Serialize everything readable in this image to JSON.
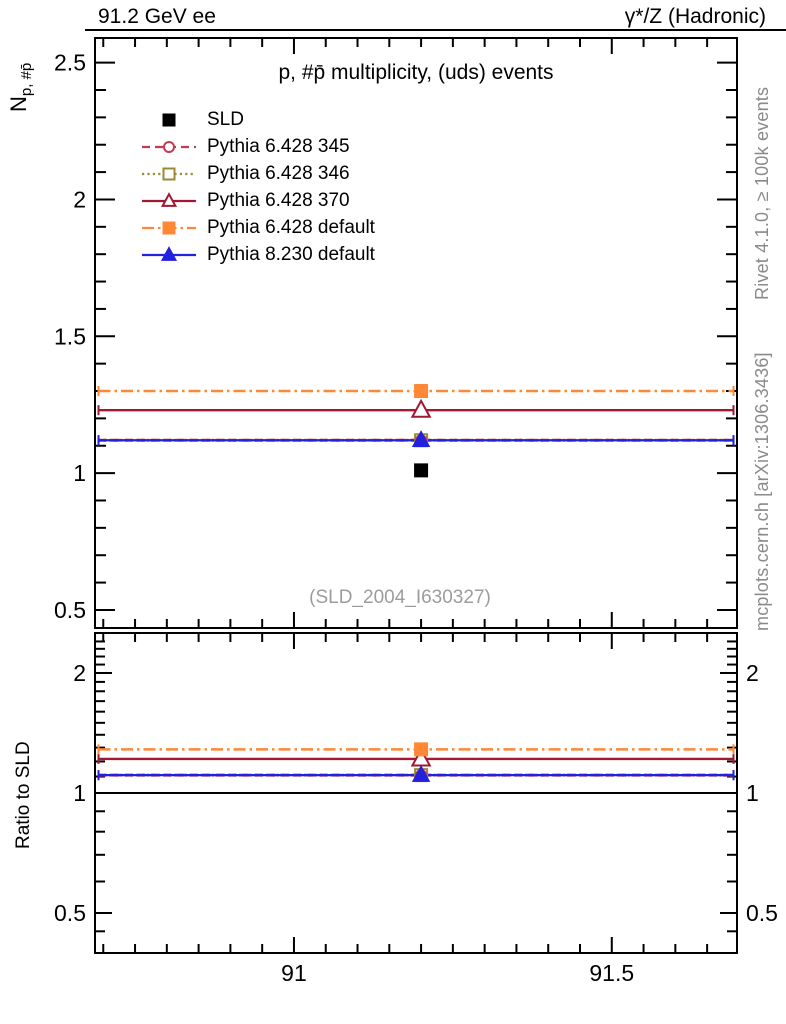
{
  "header": {
    "left": "91.2 GeV ee",
    "right": "γ*/Z (Hadronic)"
  },
  "title": "p, #p̄ multiplicity, (uds) events",
  "watermark": "(SLD_2004_I630327)",
  "side_notes": {
    "top_right": "Rivet 4.1.0, ≥ 100k events",
    "bottom_right": "mcplots.cern.ch [arXiv:1306.3436]"
  },
  "axes": {
    "x": {
      "tick_labels": [
        "91",
        "91.5"
      ]
    },
    "main": {
      "ylabel_base": "N",
      "ylabel_sub": "p, #p̄",
      "tick_labels": [
        "0.5",
        "1",
        "1.5",
        "2",
        "2.5"
      ]
    },
    "ratio": {
      "ylabel": "Ratio to SLD",
      "tick_labels_left": [
        "0.5",
        "1",
        "2"
      ],
      "tick_labels_right": [
        "0.5",
        "1",
        "2"
      ]
    }
  },
  "chart_data": {
    "type": "line",
    "title": "p, #p̄ multiplicity, (uds) events",
    "xlabel": "",
    "ylabel": "N_{p, #p̄}",
    "x_point": 91.2,
    "xlim": [
      90.687,
      91.697
    ],
    "xticks": {
      "major": [
        91,
        91.5
      ],
      "labels": [
        "91",
        "91.5"
      ],
      "minor_start": 90.7,
      "minor_step": 0.05,
      "minor_end": 91.65
    },
    "main_panel": {
      "yscale": "linear",
      "ylim": [
        0.434,
        2.59
      ],
      "yticks_major": [
        0.5,
        1,
        1.5,
        2,
        2.5
      ],
      "ytick_labels": [
        "0.5",
        "1",
        "1.5",
        "2",
        "2.5"
      ],
      "ytick_minor_step": 0.1
    },
    "ratio_panel": {
      "ylabel": "Ratio to SLD",
      "yscale": "log",
      "ylim": [
        0.397,
        2.52
      ],
      "yticks_major": [
        0.5,
        1,
        2
      ],
      "ytick_labels": [
        "0.5",
        "1",
        "2"
      ],
      "yticks_minor": [
        0.45,
        0.6,
        0.7,
        0.8,
        0.9,
        1.1,
        1.2,
        1.3,
        1.4,
        1.5,
        1.6,
        1.7,
        1.8,
        1.9,
        2.1,
        2.2,
        2.3,
        2.4
      ],
      "reference_line": 1.0
    },
    "series": [
      {
        "name": "SLD",
        "role": "data",
        "color": "#000000",
        "marker": "square",
        "fill": "filled",
        "line": "none",
        "value": 1.01
      },
      {
        "name": "Pythia 6.428 345",
        "role": "mc",
        "color": "#c43a50",
        "marker": "circle",
        "fill": "open",
        "line": "dashed",
        "value": 1.12
      },
      {
        "name": "Pythia 6.428 346",
        "role": "mc",
        "color": "#9f8833",
        "marker": "square",
        "fill": "open",
        "line": "dotted",
        "value": 1.12
      },
      {
        "name": "Pythia 6.428 370",
        "role": "mc",
        "color": "#a21833",
        "marker": "triangle",
        "fill": "open",
        "line": "solid",
        "value": 1.23
      },
      {
        "name": "Pythia 6.428 default",
        "role": "mc",
        "color": "#ff8836",
        "marker": "square",
        "fill": "filled",
        "line": "dashdot",
        "value": 1.3
      },
      {
        "name": "Pythia 8.230 default",
        "role": "mc",
        "color": "#2121de",
        "marker": "triangle",
        "fill": "filled",
        "line": "solid",
        "value": 1.12
      }
    ]
  }
}
